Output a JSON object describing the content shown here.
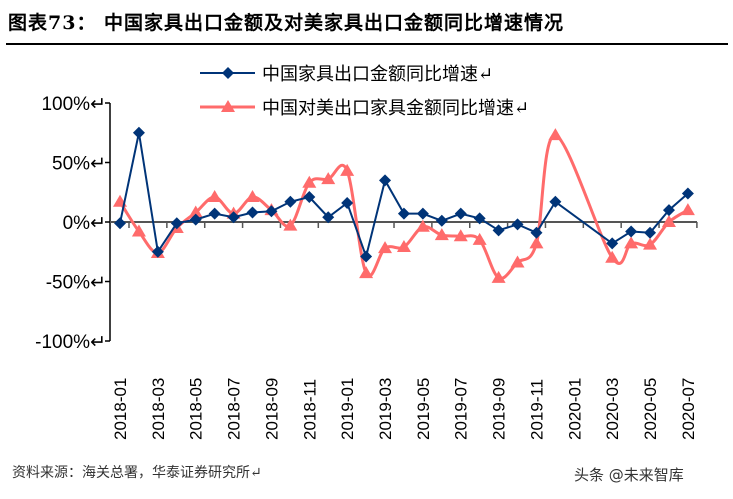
{
  "title": "图表73：  中国家具出口金额及对美家具出口金额同比增速情况",
  "source": "资料来源：海关总署，华泰证券研究所↵",
  "watermark": "头条 @未来智库",
  "chart_data": {
    "type": "line",
    "title": "",
    "xlabel": "",
    "ylabel": "",
    "ylim": [
      -100,
      100
    ],
    "yticks": [
      "100%↵",
      "50%↵",
      "0%↵",
      "-50%↵",
      "-100%↵"
    ],
    "ytick_values": [
      100,
      50,
      0,
      -50,
      -100
    ],
    "legend_placement": "top-center",
    "grid": false,
    "categories": [
      "2018-01",
      "2018-02",
      "2018-03",
      "2018-04",
      "2018-05",
      "2018-06",
      "2018-07",
      "2018-08",
      "2018-09",
      "2018-10",
      "2018-11",
      "2018-12",
      "2019-01",
      "2019-02",
      "2019-03",
      "2019-04",
      "2019-05",
      "2019-06",
      "2019-07",
      "2019-08",
      "2019-09",
      "2019-10",
      "2019-11",
      "2019-12",
      "2020-01",
      "2020-02",
      "2020-03",
      "2020-04",
      "2020-05",
      "2020-06",
      "2020-07"
    ],
    "xtick_labels": [
      "2018-01",
      "2018-03",
      "2018-05",
      "2018-07",
      "2018-09",
      "2018-11",
      "2019-01",
      "2019-03",
      "2019-05",
      "2019-07",
      "2019-09",
      "2019-11",
      "2020-01",
      "2020-03",
      "2020-05",
      "2020-07"
    ],
    "series": [
      {
        "name": "中国家具出口金额同比增速↵",
        "color": "#003478",
        "marker": "diamond",
        "smooth": false,
        "values": [
          -1,
          75,
          -25,
          -1,
          2,
          7,
          4,
          8,
          9,
          17,
          21,
          4,
          16,
          -29,
          35,
          7,
          7,
          1,
          7,
          3,
          -7,
          -2,
          -9,
          17,
          null,
          null,
          -18,
          -8,
          -9,
          10,
          24
        ]
      },
      {
        "name": "中国对美出口家具金额同比增速↵",
        "color": "#FF6B6B",
        "marker": "triangle",
        "smooth": true,
        "values": [
          17,
          -8,
          -26,
          -5,
          8,
          21,
          7,
          21,
          10,
          -3,
          33,
          36,
          43,
          -43,
          -22,
          -21,
          -4,
          -11,
          -12,
          -15,
          -47,
          -34,
          -18,
          73,
          null,
          null,
          -30,
          -18,
          -19,
          0,
          10
        ]
      }
    ]
  }
}
